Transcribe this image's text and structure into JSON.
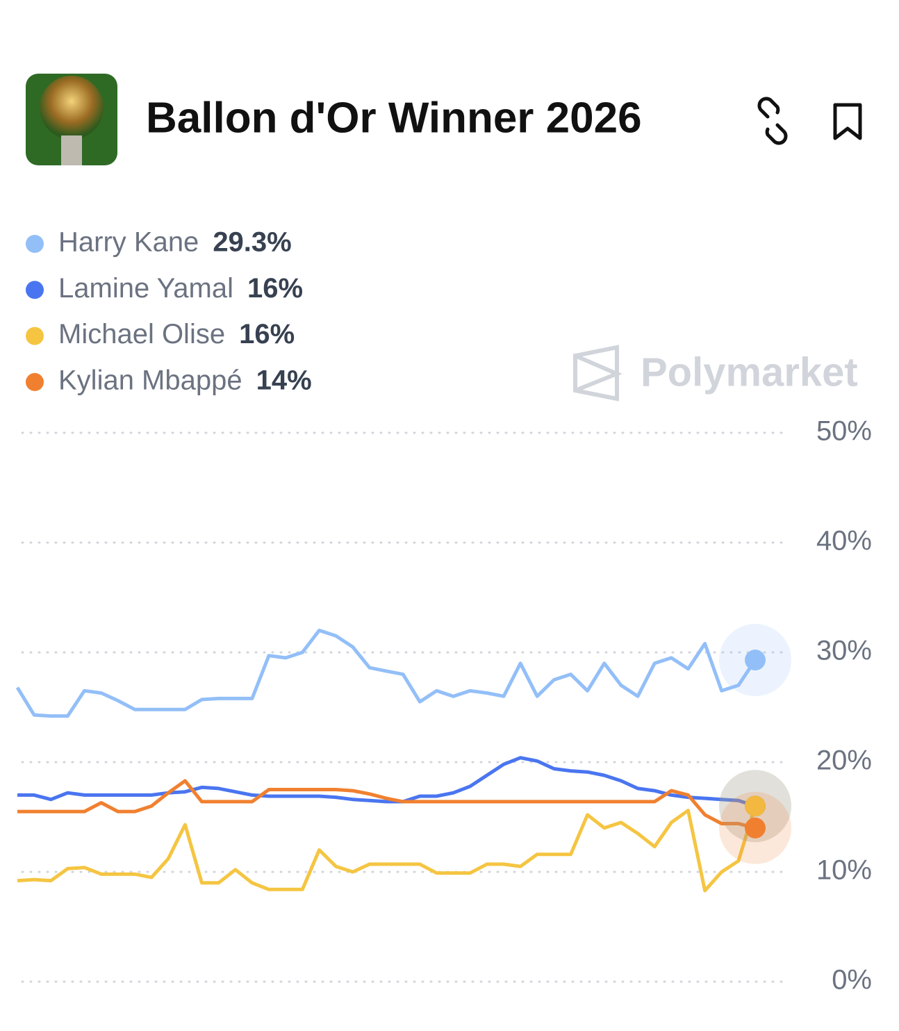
{
  "chart_data": {
    "type": "line",
    "title": "Ballon d'Or Winner 2026",
    "watermark": "Polymarket",
    "ylim": [
      0,
      50
    ],
    "yticks": [
      {
        "value": 0,
        "label": "0%"
      },
      {
        "value": 10,
        "label": "10%"
      },
      {
        "value": 20,
        "label": "20%"
      },
      {
        "value": 30,
        "label": "30%"
      },
      {
        "value": 40,
        "label": "40%"
      },
      {
        "value": 50,
        "label": "50%"
      }
    ],
    "grid": true,
    "legend": "top-left",
    "series": [
      {
        "name": "Harry Kane",
        "color": "#93bff8",
        "value": 29.3,
        "value_label": "29.3%",
        "values": [
          26.8,
          24.3,
          24.2,
          24.2,
          26.5,
          26.3,
          25.6,
          24.8,
          24.8,
          24.8,
          24.8,
          25.7,
          25.8,
          25.8,
          25.8,
          29.7,
          29.5,
          30.0,
          32.0,
          31.5,
          30.5,
          28.6,
          28.3,
          28.0,
          25.5,
          26.5,
          26.0,
          26.5,
          26.3,
          26.0,
          29.0,
          26.0,
          27.5,
          28.0,
          26.5,
          29.0,
          27.0,
          26.0,
          29.0,
          29.5,
          28.5,
          30.8,
          26.5,
          27.0,
          29.3
        ]
      },
      {
        "name": "Lamine Yamal",
        "color": "#4a75f0",
        "value": 16,
        "value_label": "16%",
        "values": [
          17.0,
          17.0,
          16.6,
          17.2,
          17.0,
          17.0,
          17.0,
          17.0,
          17.0,
          17.2,
          17.3,
          17.7,
          17.6,
          17.3,
          17.0,
          16.9,
          16.9,
          16.9,
          16.9,
          16.8,
          16.6,
          16.5,
          16.4,
          16.4,
          16.9,
          16.9,
          17.2,
          17.8,
          18.8,
          19.8,
          20.4,
          20.1,
          19.4,
          19.2,
          19.1,
          18.8,
          18.3,
          17.6,
          17.4,
          17.0,
          16.8,
          16.7,
          16.6,
          16.5,
          16.0
        ]
      },
      {
        "name": "Michael Olise",
        "color": "#f5c542",
        "value": 16,
        "value_label": "16%",
        "values": [
          9.2,
          9.3,
          9.2,
          10.3,
          10.4,
          9.8,
          9.8,
          9.8,
          9.5,
          11.2,
          14.3,
          9.0,
          9.0,
          10.2,
          9.0,
          8.4,
          8.4,
          8.4,
          12.0,
          10.5,
          10.0,
          10.7,
          10.7,
          10.7,
          10.7,
          9.9,
          9.9,
          9.9,
          10.7,
          10.7,
          10.5,
          11.6,
          11.6,
          11.6,
          15.2,
          14.0,
          14.5,
          13.5,
          12.3,
          14.5,
          15.6,
          8.3,
          10.0,
          11.0,
          16.0
        ]
      },
      {
        "name": "Kylian Mbappé",
        "color": "#f08030",
        "value": 14,
        "value_label": "14%",
        "values": [
          15.5,
          15.5,
          15.5,
          15.5,
          15.5,
          16.3,
          15.5,
          15.5,
          16.0,
          17.2,
          18.3,
          16.4,
          16.4,
          16.4,
          16.4,
          17.5,
          17.5,
          17.5,
          17.5,
          17.5,
          17.4,
          17.1,
          16.7,
          16.4,
          16.4,
          16.4,
          16.4,
          16.4,
          16.4,
          16.4,
          16.4,
          16.4,
          16.4,
          16.4,
          16.4,
          16.4,
          16.4,
          16.4,
          16.4,
          17.4,
          17.0,
          15.2,
          14.4,
          14.4,
          14.0
        ]
      }
    ]
  }
}
